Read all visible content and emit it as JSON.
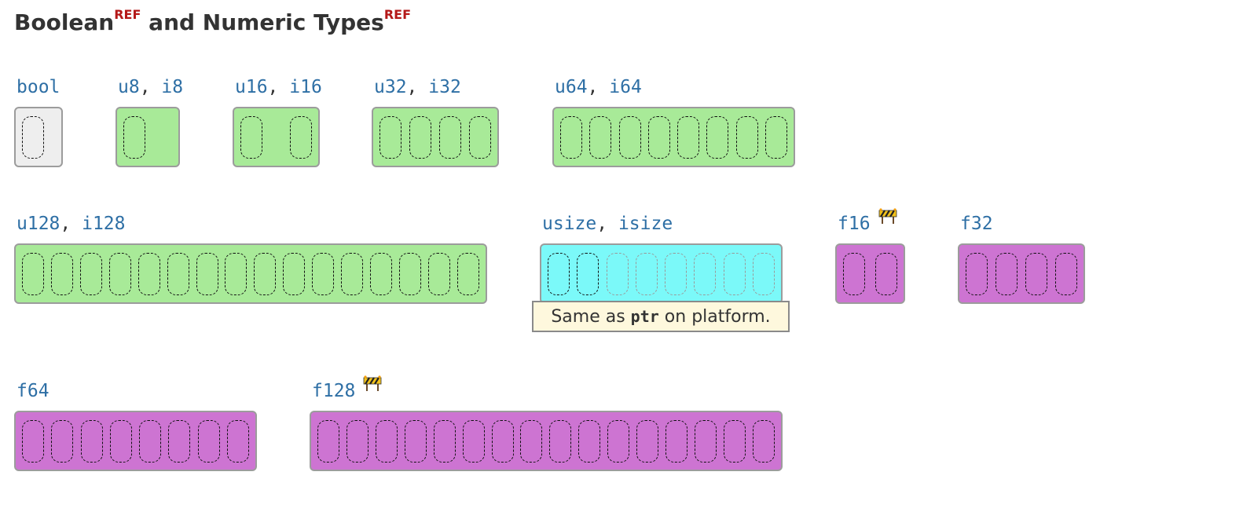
{
  "title": {
    "part1": "Boolean",
    "ref1": "REF",
    "part2": "and Numeric Types",
    "ref2": "REF"
  },
  "colors": {
    "bool_fill": "#eeeeee",
    "int_fill": "#a8ea98",
    "size_fill": "#7bf9f9",
    "float_fill": "#cd74d2",
    "ref": "#b41818",
    "type_text": "#2e6fa5"
  },
  "types": [
    {
      "id": "bool",
      "names": [
        "bool"
      ],
      "bytes": 1,
      "kind": "bool",
      "wip": false
    },
    {
      "id": "u8",
      "names": [
        "u8",
        "i8"
      ],
      "bytes": 1,
      "kind": "int",
      "wip": false
    },
    {
      "id": "u16",
      "names": [
        "u16",
        "i16"
      ],
      "bytes": 2,
      "kind": "int",
      "wip": false
    },
    {
      "id": "u32",
      "names": [
        "u32",
        "i32"
      ],
      "bytes": 4,
      "kind": "int",
      "wip": false
    },
    {
      "id": "u64",
      "names": [
        "u64",
        "i64"
      ],
      "bytes": 8,
      "kind": "int",
      "wip": false
    },
    {
      "id": "u128",
      "names": [
        "u128",
        "i128"
      ],
      "bytes": 16,
      "kind": "int",
      "wip": false
    },
    {
      "id": "usize",
      "names": [
        "usize",
        "isize"
      ],
      "bytes": 8,
      "solid_bytes": 2,
      "kind": "size",
      "wip": false
    },
    {
      "id": "f16",
      "names": [
        "f16"
      ],
      "bytes": 2,
      "kind": "float",
      "wip": true
    },
    {
      "id": "f32",
      "names": [
        "f32"
      ],
      "bytes": 4,
      "kind": "float",
      "wip": false
    },
    {
      "id": "f64",
      "names": [
        "f64"
      ],
      "bytes": 8,
      "kind": "float",
      "wip": false
    },
    {
      "id": "f128",
      "names": [
        "f128"
      ],
      "bytes": 16,
      "kind": "float",
      "wip": true
    }
  ],
  "usize_note": {
    "before": "Same as",
    "code": "ptr",
    "after": "on platform."
  }
}
